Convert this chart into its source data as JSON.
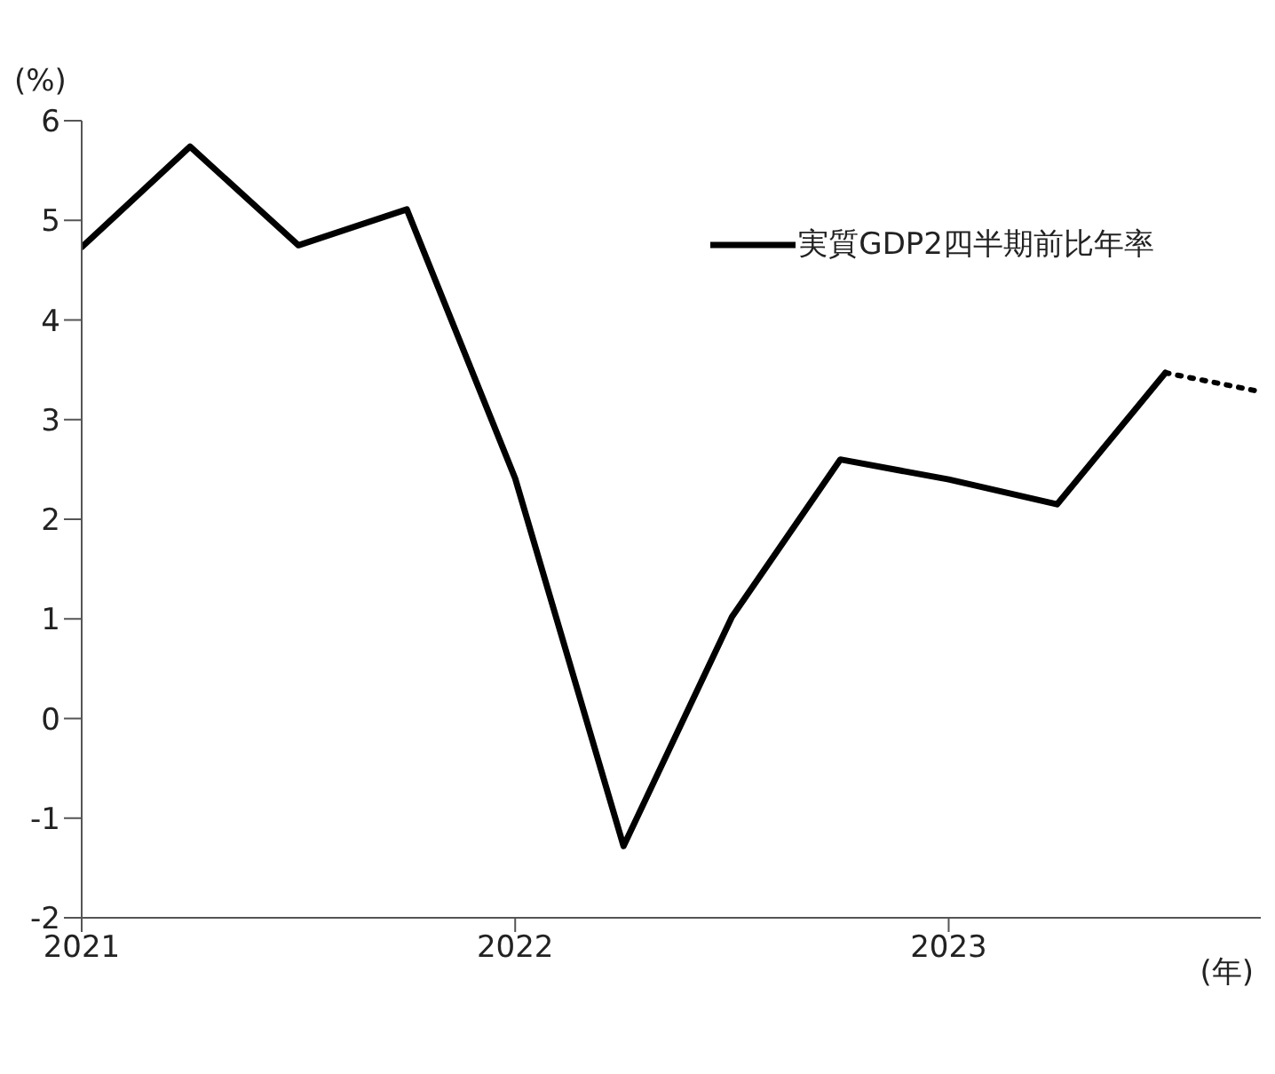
{
  "chart_data": {
    "type": "line",
    "ylabel": "(%)",
    "xlabel": "(年)",
    "x": [
      2021,
      2021.25,
      2021.5,
      2021.75,
      2022,
      2022.25,
      2022.5,
      2022.75,
      2023,
      2023.25,
      2023.5
    ],
    "series": [
      {
        "name": "実質GDP2四半期前比年率",
        "color": "#000000",
        "values": [
          4.73,
          5.74,
          4.75,
          5.11,
          2.41,
          -1.28,
          1.02,
          2.6,
          2.4,
          2.15,
          3.47
        ],
        "line_style": "solid"
      },
      {
        "color": "#000000",
        "x": [
          2023.5,
          2023.72
        ],
        "values": [
          3.47,
          3.28
        ],
        "line_style": "dotted"
      }
    ],
    "xlim": [
      2021,
      2023.72
    ],
    "xticks": [
      2021,
      2022,
      2023
    ],
    "ylim": [
      -2,
      6
    ],
    "yticks": [
      -2,
      -1,
      0,
      1,
      2,
      3,
      4,
      5,
      6
    ],
    "grid": false,
    "legend": "top right",
    "marker": "none"
  }
}
